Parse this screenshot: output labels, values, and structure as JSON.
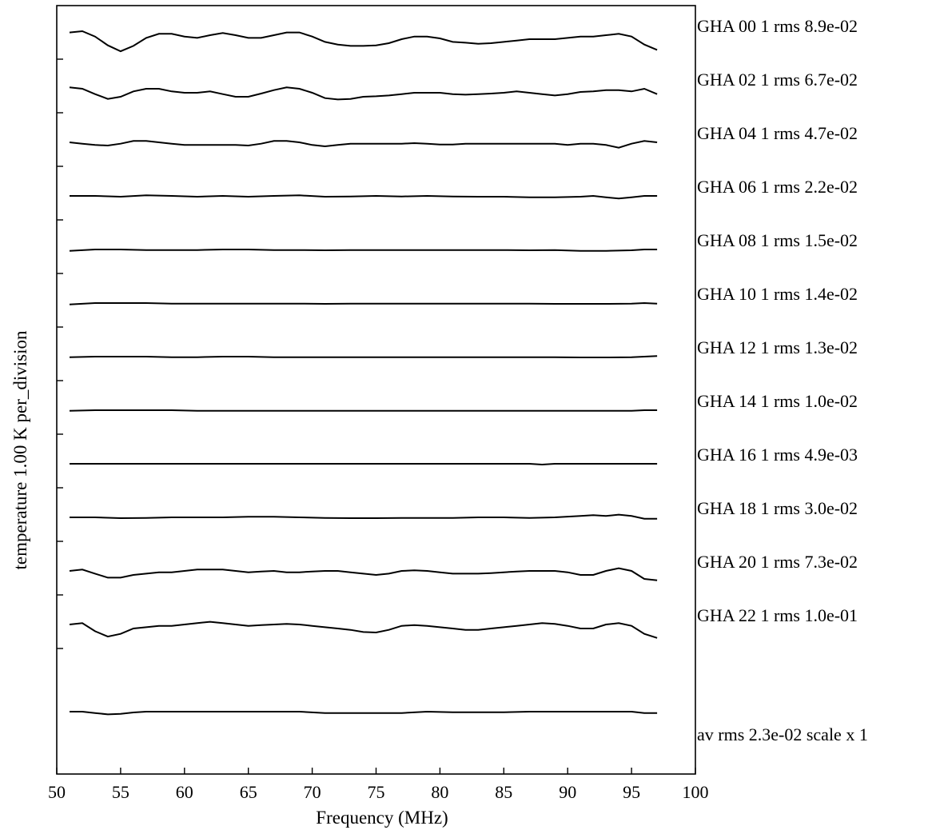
{
  "chart_data": {
    "type": "line",
    "xlabel": "Frequency (MHz)",
    "ylabel": "temperature 1.00 K per_division",
    "xlim": [
      50,
      100
    ],
    "xticks": [
      50,
      55,
      60,
      65,
      70,
      75,
      80,
      85,
      90,
      95,
      100
    ],
    "x_range_data": [
      51,
      97
    ],
    "y_units_per_division": 1.0,
    "grid": false,
    "series": [
      {
        "label": "GHA 00 1 rms 8.9e-02",
        "x": [
          51,
          52,
          53,
          54,
          55,
          56,
          57,
          58,
          59,
          60,
          61,
          62,
          63,
          64,
          65,
          66,
          67,
          68,
          69,
          70,
          71,
          72,
          73,
          74,
          75,
          76,
          77,
          78,
          79,
          80,
          81,
          82,
          83,
          84,
          85,
          86,
          87,
          88,
          89,
          90,
          91,
          92,
          93,
          94,
          95,
          96,
          97
        ],
        "y": [
          0.1,
          0.15,
          -0.05,
          -0.38,
          -0.6,
          -0.4,
          -0.1,
          0.05,
          0.05,
          -0.05,
          -0.1,
          0.0,
          0.08,
          0.0,
          -0.1,
          -0.1,
          0.0,
          0.1,
          0.1,
          -0.05,
          -0.25,
          -0.35,
          -0.4,
          -0.4,
          -0.38,
          -0.3,
          -0.15,
          -0.05,
          -0.05,
          -0.12,
          -0.25,
          -0.28,
          -0.32,
          -0.3,
          -0.25,
          -0.2,
          -0.15,
          -0.15,
          -0.15,
          -0.1,
          -0.05,
          -0.05,
          0.0,
          0.05,
          -0.05,
          -0.35,
          -0.55
        ]
      },
      {
        "label": "GHA 02 1 rms 6.7e-02",
        "x": [
          51,
          52,
          53,
          54,
          55,
          56,
          57,
          58,
          59,
          60,
          61,
          62,
          63,
          64,
          65,
          66,
          67,
          68,
          69,
          70,
          71,
          72,
          73,
          74,
          75,
          76,
          77,
          78,
          79,
          80,
          81,
          82,
          83,
          84,
          85,
          86,
          87,
          88,
          89,
          90,
          91,
          92,
          93,
          94,
          95,
          96,
          97
        ],
        "y": [
          0.05,
          0.0,
          -0.2,
          -0.38,
          -0.3,
          -0.1,
          0.0,
          0.0,
          -0.1,
          -0.15,
          -0.15,
          -0.1,
          -0.2,
          -0.3,
          -0.3,
          -0.18,
          -0.05,
          0.05,
          0.0,
          -0.15,
          -0.35,
          -0.4,
          -0.38,
          -0.3,
          -0.28,
          -0.25,
          -0.2,
          -0.15,
          -0.15,
          -0.15,
          -0.2,
          -0.22,
          -0.2,
          -0.18,
          -0.15,
          -0.1,
          -0.15,
          -0.2,
          -0.25,
          -0.2,
          -0.12,
          -0.1,
          -0.05,
          -0.05,
          -0.1,
          0.0,
          -0.2
        ]
      },
      {
        "label": "GHA 04 1 rms 4.7e-02",
        "x": [
          51,
          52,
          53,
          54,
          55,
          56,
          57,
          58,
          59,
          60,
          61,
          62,
          63,
          64,
          65,
          66,
          67,
          68,
          69,
          70,
          71,
          72,
          73,
          74,
          75,
          76,
          77,
          78,
          79,
          80,
          81,
          82,
          83,
          84,
          85,
          86,
          87,
          88,
          89,
          90,
          91,
          92,
          93,
          94,
          95,
          96,
          97
        ],
        "y": [
          0.0,
          -0.05,
          -0.1,
          -0.12,
          -0.05,
          0.05,
          0.05,
          0.0,
          -0.05,
          -0.1,
          -0.1,
          -0.1,
          -0.1,
          -0.1,
          -0.12,
          -0.05,
          0.05,
          0.05,
          0.0,
          -0.1,
          -0.15,
          -0.1,
          -0.05,
          -0.05,
          -0.05,
          -0.05,
          -0.05,
          -0.03,
          -0.05,
          -0.08,
          -0.08,
          -0.05,
          -0.05,
          -0.05,
          -0.05,
          -0.05,
          -0.05,
          -0.05,
          -0.05,
          -0.1,
          -0.05,
          -0.05,
          -0.1,
          -0.2,
          -0.05,
          0.05,
          0.0
        ]
      },
      {
        "label": "GHA 06 1 rms 2.2e-02",
        "x": [
          51,
          53,
          55,
          57,
          59,
          61,
          63,
          65,
          67,
          69,
          71,
          73,
          75,
          77,
          79,
          81,
          83,
          85,
          87,
          89,
          91,
          92,
          93,
          94,
          95,
          96,
          97
        ],
        "y": [
          0.0,
          0.0,
          -0.03,
          0.02,
          0.0,
          -0.03,
          0.0,
          -0.03,
          0.0,
          0.02,
          -0.03,
          -0.02,
          0.0,
          -0.02,
          0.0,
          -0.02,
          -0.03,
          -0.03,
          -0.05,
          -0.05,
          -0.03,
          0.0,
          -0.05,
          -0.1,
          -0.05,
          0.0,
          0.0
        ]
      },
      {
        "label": "GHA 08 1 rms 1.5e-02",
        "x": [
          51,
          53,
          55,
          57,
          59,
          61,
          63,
          65,
          67,
          69,
          71,
          73,
          75,
          77,
          79,
          81,
          83,
          85,
          87,
          89,
          91,
          93,
          95,
          96,
          97
        ],
        "y": [
          -0.05,
          0.0,
          0.0,
          -0.02,
          -0.02,
          -0.02,
          0.0,
          0.0,
          -0.02,
          -0.02,
          -0.03,
          -0.02,
          -0.02,
          -0.02,
          -0.02,
          -0.02,
          -0.02,
          -0.02,
          -0.03,
          -0.02,
          -0.05,
          -0.05,
          -0.03,
          0.0,
          0.0
        ]
      },
      {
        "label": "GHA 10 1 rms 1.4e-02",
        "x": [
          51,
          53,
          55,
          57,
          59,
          61,
          63,
          65,
          67,
          69,
          71,
          73,
          75,
          77,
          79,
          81,
          83,
          85,
          87,
          89,
          91,
          93,
          95,
          96,
          97
        ],
        "y": [
          -0.05,
          0.0,
          0.0,
          0.0,
          -0.02,
          -0.02,
          -0.02,
          -0.02,
          -0.02,
          -0.02,
          -0.03,
          -0.02,
          -0.02,
          -0.02,
          -0.02,
          -0.02,
          -0.02,
          -0.02,
          -0.02,
          -0.03,
          -0.03,
          -0.03,
          -0.02,
          0.0,
          -0.02
        ]
      },
      {
        "label": "GHA 12 1 rms 1.3e-02",
        "x": [
          51,
          53,
          55,
          57,
          59,
          61,
          63,
          65,
          67,
          69,
          71,
          73,
          75,
          77,
          79,
          81,
          83,
          85,
          87,
          89,
          91,
          93,
          95,
          96,
          97
        ],
        "y": [
          -0.02,
          0.0,
          0.0,
          0.0,
          -0.02,
          -0.02,
          0.0,
          0.0,
          -0.02,
          -0.02,
          -0.02,
          -0.02,
          -0.02,
          -0.02,
          -0.02,
          -0.02,
          -0.02,
          -0.02,
          -0.02,
          -0.02,
          -0.03,
          -0.03,
          -0.02,
          0.0,
          0.02
        ]
      },
      {
        "label": "GHA 14 1 rms 1.0e-02",
        "x": [
          51,
          53,
          55,
          57,
          59,
          61,
          63,
          65,
          67,
          69,
          71,
          73,
          75,
          77,
          79,
          81,
          83,
          85,
          87,
          89,
          91,
          93,
          95,
          96,
          97
        ],
        "y": [
          -0.02,
          0.0,
          0.0,
          0.0,
          0.0,
          -0.02,
          -0.02,
          -0.02,
          -0.02,
          -0.02,
          -0.02,
          -0.02,
          -0.02,
          -0.02,
          -0.02,
          -0.02,
          -0.02,
          -0.02,
          -0.02,
          -0.02,
          -0.02,
          -0.02,
          -0.02,
          0.0,
          0.0
        ]
      },
      {
        "label": "GHA 16 1 rms 4.9e-03",
        "x": [
          51,
          55,
          60,
          65,
          70,
          75,
          80,
          85,
          87,
          88,
          89,
          91,
          95,
          97
        ],
        "y": [
          0.0,
          0.0,
          0.0,
          0.0,
          0.0,
          0.0,
          0.0,
          0.0,
          0.0,
          -0.03,
          0.0,
          0.0,
          0.0,
          0.0
        ]
      },
      {
        "label": "GHA 18 1 rms 3.0e-02",
        "x": [
          51,
          53,
          55,
          57,
          59,
          61,
          63,
          65,
          67,
          69,
          71,
          73,
          75,
          77,
          79,
          81,
          83,
          85,
          87,
          89,
          91,
          92,
          93,
          94,
          95,
          96,
          97
        ],
        "y": [
          0.0,
          0.0,
          -0.03,
          -0.02,
          0.0,
          0.0,
          0.0,
          0.02,
          0.02,
          0.0,
          -0.02,
          -0.03,
          -0.03,
          -0.02,
          -0.02,
          -0.02,
          0.0,
          0.0,
          -0.02,
          0.0,
          0.05,
          0.08,
          0.05,
          0.1,
          0.05,
          -0.05,
          -0.05
        ]
      },
      {
        "label": "GHA 20 1 rms 7.3e-02",
        "x": [
          51,
          52,
          53,
          54,
          55,
          56,
          57,
          58,
          59,
          60,
          61,
          62,
          63,
          64,
          65,
          66,
          67,
          68,
          69,
          70,
          71,
          72,
          73,
          74,
          75,
          76,
          77,
          78,
          79,
          80,
          81,
          82,
          83,
          84,
          85,
          86,
          87,
          88,
          89,
          90,
          91,
          92,
          93,
          94,
          95,
          96,
          97
        ],
        "y": [
          0.0,
          0.05,
          -0.1,
          -0.25,
          -0.25,
          -0.15,
          -0.1,
          -0.05,
          -0.05,
          0.0,
          0.05,
          0.05,
          0.05,
          0.0,
          -0.05,
          -0.02,
          0.0,
          -0.05,
          -0.05,
          -0.02,
          0.0,
          0.0,
          -0.05,
          -0.1,
          -0.15,
          -0.1,
          0.0,
          0.02,
          0.0,
          -0.05,
          -0.1,
          -0.1,
          -0.1,
          -0.08,
          -0.05,
          -0.02,
          0.0,
          0.0,
          0.0,
          -0.05,
          -0.15,
          -0.15,
          0.0,
          0.1,
          0.0,
          -0.3,
          -0.35
        ]
      },
      {
        "label": "GHA 22 1 rms 1.0e-01",
        "x": [
          51,
          52,
          53,
          54,
          55,
          56,
          57,
          58,
          59,
          60,
          61,
          62,
          63,
          64,
          65,
          66,
          67,
          68,
          69,
          70,
          71,
          72,
          73,
          74,
          75,
          76,
          77,
          78,
          79,
          80,
          81,
          82,
          83,
          84,
          85,
          86,
          87,
          88,
          89,
          90,
          91,
          92,
          93,
          94,
          95,
          96,
          97
        ],
        "y": [
          0.0,
          0.05,
          -0.25,
          -0.45,
          -0.35,
          -0.15,
          -0.1,
          -0.05,
          -0.05,
          0.0,
          0.05,
          0.1,
          0.05,
          0.0,
          -0.05,
          -0.02,
          0.0,
          0.02,
          0.0,
          -0.05,
          -0.1,
          -0.15,
          -0.2,
          -0.28,
          -0.3,
          -0.2,
          -0.05,
          -0.02,
          -0.05,
          -0.1,
          -0.15,
          -0.2,
          -0.2,
          -0.15,
          -0.1,
          -0.05,
          0.0,
          0.05,
          0.02,
          -0.05,
          -0.15,
          -0.15,
          0.0,
          0.05,
          -0.05,
          -0.35,
          -0.5
        ]
      }
    ],
    "average": {
      "label": "av rms 2.3e-02 scale x 1",
      "x": [
        51,
        52,
        53,
        54,
        55,
        56,
        57,
        59,
        61,
        63,
        65,
        67,
        69,
        71,
        73,
        75,
        77,
        79,
        81,
        83,
        85,
        87,
        89,
        91,
        93,
        95,
        96,
        97
      ],
      "y": [
        0.0,
        0.0,
        -0.05,
        -0.1,
        -0.08,
        -0.03,
        0.0,
        0.0,
        0.0,
        0.0,
        0.0,
        0.0,
        0.0,
        -0.05,
        -0.05,
        -0.05,
        -0.05,
        0.0,
        -0.02,
        -0.02,
        -0.02,
        0.0,
        0.0,
        0.0,
        0.0,
        0.0,
        -0.05,
        -0.05
      ]
    }
  }
}
